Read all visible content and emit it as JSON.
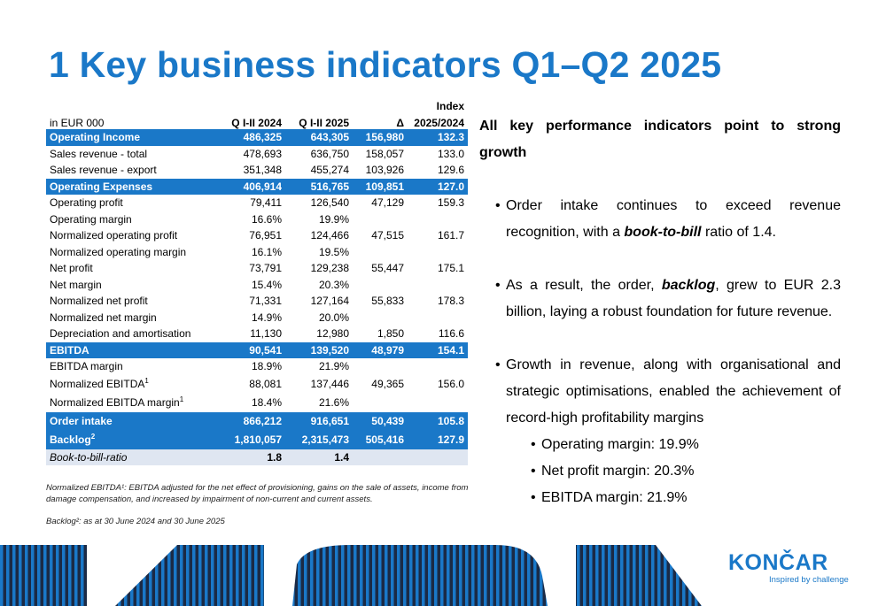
{
  "title": "1 Key business indicators Q1–Q2 2025",
  "table": {
    "header_label": "in EUR 000",
    "col_h1": "Q I-II 2024",
    "col_h2": "Q I-II 2025",
    "col_h3": "Δ",
    "col_h4a": "Index",
    "col_h4b": "2025/2024",
    "rows": [
      {
        "label": "Operating Income",
        "v1": "486,325",
        "v2": "643,305",
        "v3": "156,980",
        "v4": "132.3",
        "style": "hl"
      },
      {
        "label": "Sales revenue - total",
        "v1": "478,693",
        "v2": "636,750",
        "v3": "158,057",
        "v4": "133.0",
        "style": "plain"
      },
      {
        "label": "Sales revenue - export",
        "v1": "351,348",
        "v2": "455,274",
        "v3": "103,926",
        "v4": "129.6",
        "style": "plain"
      },
      {
        "label": "Operating Expenses",
        "v1": "406,914",
        "v2": "516,765",
        "v3": "109,851",
        "v4": "127.0",
        "style": "hl"
      },
      {
        "label": "Operating profit",
        "v1": "79,411",
        "v2": "126,540",
        "v3": "47,129",
        "v4": "159.3",
        "style": "plain"
      },
      {
        "label": "Operating margin",
        "v1": "16.6%",
        "v2": "19.9%",
        "v3": "",
        "v4": "",
        "style": "plain"
      },
      {
        "label": "Normalized operating profit",
        "v1": "76,951",
        "v2": "124,466",
        "v3": "47,515",
        "v4": "161.7",
        "style": "plain"
      },
      {
        "label": "Normalized operating margin",
        "v1": "16.1%",
        "v2": "19.5%",
        "v3": "",
        "v4": "",
        "style": "plain"
      },
      {
        "label": "Net profit",
        "v1": "73,791",
        "v2": "129,238",
        "v3": "55,447",
        "v4": "175.1",
        "style": "plain"
      },
      {
        "label": "Net margin",
        "v1": "15.4%",
        "v2": "20.3%",
        "v3": "",
        "v4": "",
        "style": "plain"
      },
      {
        "label": "Normalized net profit",
        "v1": "71,331",
        "v2": "127,164",
        "v3": "55,833",
        "v4": "178.3",
        "style": "plain"
      },
      {
        "label": "Normalized net margin",
        "v1": "14.9%",
        "v2": "20.0%",
        "v3": "",
        "v4": "",
        "style": "plain"
      },
      {
        "label": "Depreciation and amortisation",
        "v1": "11,130",
        "v2": "12,980",
        "v3": "1,850",
        "v4": "116.6",
        "style": "plain"
      },
      {
        "label": "EBITDA",
        "v1": "90,541",
        "v2": "139,520",
        "v3": "48,979",
        "v4": "154.1",
        "style": "hl"
      },
      {
        "label": "EBITDA margin",
        "v1": "18.9%",
        "v2": "21.9%",
        "v3": "",
        "v4": "",
        "style": "plain"
      },
      {
        "label": "Normalized EBITDA",
        "sup": "1",
        "v1": "88,081",
        "v2": "137,446",
        "v3": "49,365",
        "v4": "156.0",
        "style": "tall"
      },
      {
        "label": "Normalized EBITDA margin",
        "sup": "1",
        "v1": "18.4%",
        "v2": "21.6%",
        "v3": "",
        "v4": "",
        "style": "tall"
      },
      {
        "label": "Order intake",
        "v1": "866,212",
        "v2": "916,651",
        "v3": "50,439",
        "v4": "105.8",
        "style": "hl2"
      },
      {
        "label": "Backlog",
        "sup": "2",
        "v1": "1,810,057",
        "v2": "2,315,473",
        "v3": "505,416",
        "v4": "127.9",
        "style": "hl2"
      },
      {
        "label": "Book-to-bill-ratio",
        "v1": "1.8",
        "v2": "1.4",
        "v3": "",
        "v4": "",
        "style": "ital"
      }
    ]
  },
  "footnote1": "Normalized EBITDA¹: EBITDA adjusted for the net effect of provisioning, gains on the sale of assets, income from damage compensation, and increased by impairment of non-current and current assets.",
  "footnote2": "Backlog²: as at 30 June 2024 and 30 June 2025",
  "right": {
    "lead_line1": "All key performance indicators point to strong",
    "lead_line2": "growth",
    "bullet1_pre": "Order intake continues to exceed revenue recognition, with a ",
    "bullet1_bold": "book-to-bill",
    "bullet1_post": " ratio of 1.4.",
    "bullet2_pre": "As a result, the order, ",
    "bullet2_bold": "backlog",
    "bullet2_post": ", grew to EUR 2.3 billion, laying a robust foundation for future revenue.",
    "bullet3": "Growth in revenue, along with organisational and strategic optimisations, enabled the achievement of record-high profitability margins",
    "sub1": "Operating margin: 19.9%",
    "sub2": "Net profit margin: 20.3%",
    "sub3": "EBITDA margin: 21.9%",
    "bullet_glyph": "•"
  },
  "logo": {
    "name": "KONČAR",
    "tagline": "Inspired by challenge"
  },
  "colors": {
    "brand_blue": "#1a78c8",
    "dark_navy": "#1b2a45",
    "light_row": "#dfe6f1"
  }
}
